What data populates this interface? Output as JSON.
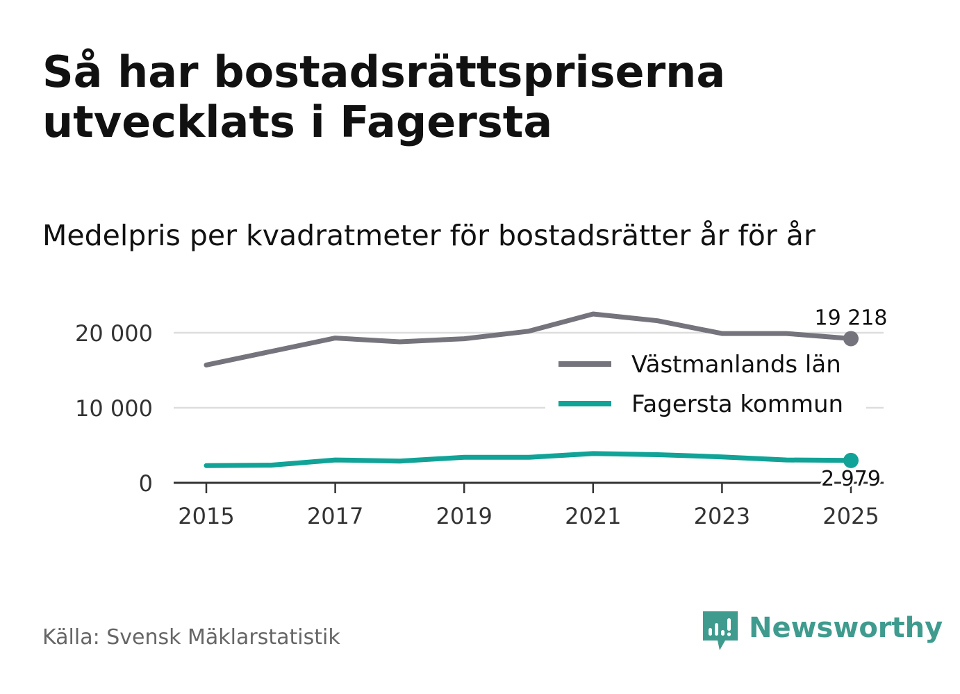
{
  "title": "Så har bostadsrättspriserna utvecklats i Fagersta",
  "subtitle": "Medelpris per kvadratmeter för bostadsrätter år för år",
  "source": "Källa: Svensk Mäklarstatistik",
  "brand": {
    "name": "Newsworthy",
    "logo_icon": "newsworthy-bar-chart-icon",
    "color": "#3f9b8e"
  },
  "chart_data": {
    "type": "line",
    "title": "Medelpris per kvadratmeter för bostadsrätter år för år",
    "xlabel": "",
    "ylabel": "",
    "x": [
      2015,
      2016,
      2017,
      2018,
      2019,
      2020,
      2021,
      2022,
      2023,
      2024,
      2025
    ],
    "xticks": [
      2015,
      2017,
      2019,
      2021,
      2023,
      2025
    ],
    "xtick_labels": [
      "2015",
      "2017",
      "2019",
      "2021",
      "2023",
      "2025"
    ],
    "yticks": [
      0,
      10000,
      20000
    ],
    "ytick_labels": [
      "0",
      "10 000",
      "20 000"
    ],
    "ylim": [
      0,
      22500
    ],
    "grid": true,
    "legend_position": "right",
    "series": [
      {
        "name": "Västmanlands län",
        "color": "#75747c",
        "values": [
          15700,
          17500,
          19300,
          18800,
          19200,
          20200,
          22500,
          21600,
          19900,
          19900,
          19218
        ],
        "end_label": "19 218"
      },
      {
        "name": "Fagersta kommun",
        "color": "#11a397",
        "values": [
          2300,
          2350,
          3050,
          2900,
          3400,
          3400,
          3900,
          3750,
          3450,
          3050,
          2979
        ],
        "end_label": "2 979"
      }
    ]
  }
}
